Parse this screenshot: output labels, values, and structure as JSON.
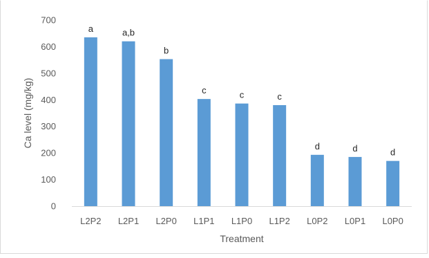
{
  "chart_data": {
    "type": "bar",
    "title": "",
    "xlabel": "Treatment",
    "ylabel": "Ca level (mg/kg)",
    "ylim": [
      0,
      700
    ],
    "yticks": [
      "0",
      "100",
      "200",
      "300",
      "400",
      "500",
      "600",
      "700"
    ],
    "grid": false,
    "legend": "none",
    "bar_color": "#5b9bd5",
    "categories": [
      "L2P2",
      "L2P1",
      "L2P0",
      "L1P1",
      "L1P0",
      "L1P2",
      "L0P2",
      "L0P1",
      "L0P0"
    ],
    "values": [
      635,
      620,
      553,
      403,
      386,
      380,
      193,
      185,
      170
    ],
    "annotations": [
      "a",
      "a,b",
      "b",
      "c",
      "c",
      "c",
      "d",
      "d",
      "d"
    ]
  }
}
